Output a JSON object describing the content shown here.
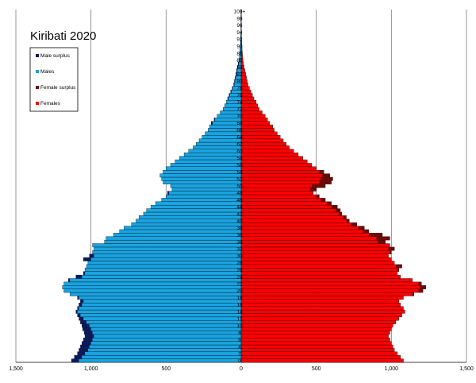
{
  "chart_data": {
    "type": "bar",
    "title": "Kiribati 2020",
    "orientation": "horizontal-population-pyramid",
    "x_ticks": [
      {
        "value": -1500,
        "label": "1,500"
      },
      {
        "value": -1000,
        "label": "1,000"
      },
      {
        "value": -500,
        "label": "500"
      },
      {
        "value": 0,
        "label": "0"
      },
      {
        "value": 500,
        "label": "500"
      },
      {
        "value": 1000,
        "label": "1,000"
      },
      {
        "value": 1500,
        "label": "1,500"
      }
    ],
    "xlim": [
      -1500,
      1500
    ],
    "grid": true,
    "legend_position": "top-left",
    "legend": [
      {
        "key": "male_surplus",
        "label": "Male surplus",
        "color": "#0d1a5a"
      },
      {
        "key": "males",
        "label": "Males",
        "color": "#1aa3e0"
      },
      {
        "key": "female_surplus",
        "label": "Female surplus",
        "color": "#6b0a0a"
      },
      {
        "key": "females",
        "label": "Females",
        "color": "#ff0000"
      }
    ],
    "age_labels": [
      "0",
      "2",
      "4",
      "6",
      "8",
      "10",
      "12",
      "14",
      "16",
      "18",
      "20",
      "22",
      "24",
      "26",
      "28",
      "30",
      "32",
      "34",
      "36",
      "38",
      "40",
      "42",
      "44",
      "46",
      "48",
      "50",
      "52",
      "54",
      "56",
      "58",
      "60",
      "62",
      "64",
      "66",
      "68",
      "70",
      "72",
      "74",
      "76",
      "78",
      "80",
      "82",
      "84",
      "86",
      "88",
      "90",
      "92",
      "94",
      "96",
      "98",
      "100+"
    ],
    "ages": [
      "0",
      "1",
      "2",
      "3",
      "4",
      "5",
      "6",
      "7",
      "8",
      "9",
      "10",
      "11",
      "12",
      "13",
      "14",
      "15",
      "16",
      "17",
      "18",
      "19",
      "20",
      "21",
      "22",
      "23",
      "24",
      "25",
      "26",
      "27",
      "28",
      "29",
      "30",
      "31",
      "32",
      "33",
      "34",
      "35",
      "36",
      "37",
      "38",
      "39",
      "40",
      "41",
      "42",
      "43",
      "44",
      "45",
      "46",
      "47",
      "48",
      "49",
      "50",
      "51",
      "52",
      "53",
      "54",
      "55",
      "56",
      "57",
      "58",
      "59",
      "60",
      "61",
      "62",
      "63",
      "64",
      "65",
      "66",
      "67",
      "68",
      "69",
      "70",
      "71",
      "72",
      "73",
      "74",
      "75",
      "76",
      "77",
      "78",
      "79",
      "80",
      "81",
      "82",
      "83",
      "84",
      "85",
      "86",
      "87",
      "88",
      "89",
      "90",
      "91",
      "92",
      "93",
      "94",
      "95",
      "96",
      "97",
      "98",
      "99",
      "100+"
    ],
    "males": [
      1130,
      1110,
      1090,
      1080,
      1070,
      1060,
      1050,
      1040,
      1045,
      1055,
      1060,
      1070,
      1080,
      1090,
      1100,
      1090,
      1080,
      1070,
      1090,
      1140,
      1180,
      1190,
      1180,
      1150,
      1100,
      1050,
      1040,
      1030,
      1020,
      1050,
      1010,
      990,
      980,
      990,
      910,
      900,
      850,
      810,
      780,
      730,
      700,
      680,
      650,
      630,
      600,
      570,
      530,
      500,
      490,
      460,
      470,
      520,
      530,
      540,
      520,
      500,
      470,
      440,
      410,
      380,
      350,
      320,
      300,
      280,
      260,
      240,
      220,
      210,
      200,
      180,
      160,
      140,
      120,
      110,
      100,
      90,
      80,
      70,
      60,
      50,
      45,
      40,
      35,
      30,
      25,
      20,
      15,
      12,
      10,
      8,
      6,
      5,
      4,
      3,
      2,
      2,
      1,
      1,
      1,
      1,
      1
    ],
    "females": [
      1080,
      1060,
      1040,
      1020,
      1010,
      1000,
      990,
      980,
      990,
      1000,
      1010,
      1030,
      1050,
      1070,
      1090,
      1080,
      1060,
      1050,
      1080,
      1150,
      1210,
      1230,
      1200,
      1140,
      1060,
      1040,
      1050,
      1070,
      1020,
      1000,
      980,
      1000,
      1020,
      990,
      960,
      990,
      940,
      850,
      820,
      770,
      720,
      700,
      670,
      660,
      640,
      600,
      560,
      520,
      480,
      500,
      560,
      600,
      610,
      590,
      550,
      500,
      470,
      440,
      410,
      380,
      350,
      320,
      300,
      280,
      260,
      240,
      220,
      210,
      190,
      175,
      160,
      140,
      120,
      110,
      100,
      85,
      75,
      65,
      55,
      45,
      40,
      35,
      30,
      25,
      20,
      15,
      12,
      10,
      8,
      6,
      5,
      4,
      3,
      2,
      2,
      1,
      1,
      1,
      1,
      1,
      1
    ],
    "female_surplus_color": "#6b0a0a",
    "male_surplus_color": "#0d1a5a",
    "males_color": "#1aa3e0",
    "females_color": "#ff0000"
  }
}
